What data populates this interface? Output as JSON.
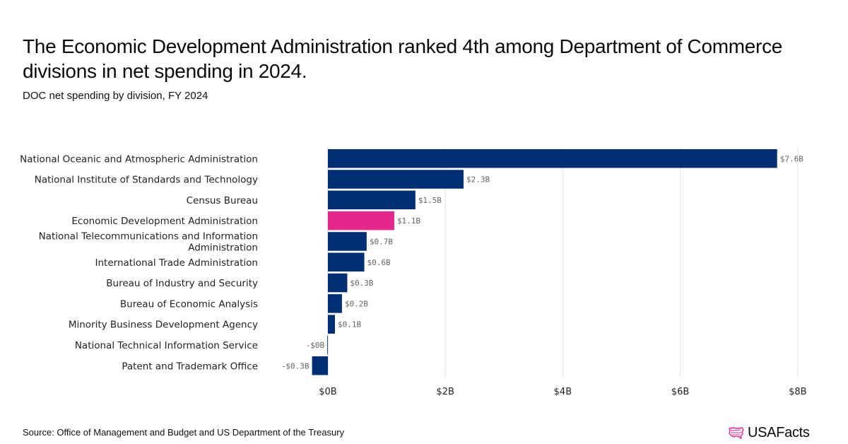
{
  "header": {
    "title": "The Economic Development Administration ranked 4th among Department of Commerce divisions in net spending in 2024.",
    "subtitle": "DOC net spending by division, FY 2024"
  },
  "footer": {
    "source": "Source: Office of Management and Budget and US Department of the Treasury",
    "logo_text": "USAFacts",
    "logo_icon": "usa-map-icon"
  },
  "colors": {
    "default_bar": "#002f76",
    "highlight_bar": "#e5268f",
    "gridline": "#e5e5e5",
    "logo_icon": "#e5268f"
  },
  "chart_data": {
    "type": "bar",
    "orientation": "horizontal",
    "title": "The Economic Development Administration ranked 4th among Department of Commerce divisions in net spending in 2024.",
    "subtitle": "DOC net spending by division, FY 2024",
    "xlabel": "",
    "ylabel": "",
    "unit": "billions USD",
    "xlim": [
      -0.3,
      8
    ],
    "grid": true,
    "legend": "none",
    "xticks": [
      0,
      2,
      4,
      6,
      8
    ],
    "xtick_labels": [
      "$0B",
      "$2B",
      "$4B",
      "$6B",
      "$8B"
    ],
    "categories": [
      "National Oceanic and Atmospheric Administration",
      "National Institute of Standards and Technology",
      "Census Bureau",
      "Economic Development Administration",
      "National Telecommunications and Information Administration",
      "International Trade Administration",
      "Bureau of Industry and Security",
      "Bureau of Economic Analysis",
      "Minority Business Development Agency",
      "National Technical Information Service",
      "Patent and Trademark Office"
    ],
    "category_lines": [
      [
        "National Oceanic and Atmospheric Administration"
      ],
      [
        "National Institute of Standards and Technology"
      ],
      [
        "Census Bureau"
      ],
      [
        "Economic Development Administration"
      ],
      [
        "National Telecommunications and Information",
        "Administration"
      ],
      [
        "International Trade Administration"
      ],
      [
        "Bureau of Industry and Security"
      ],
      [
        "Bureau of Economic Analysis"
      ],
      [
        "Minority Business Development Agency"
      ],
      [
        "National Technical Information Service"
      ],
      [
        "Patent and Trademark Office"
      ]
    ],
    "values": [
      7.65,
      2.31,
      1.49,
      1.13,
      0.66,
      0.62,
      0.33,
      0.24,
      0.12,
      -0.01,
      -0.27
    ],
    "data_labels": [
      "$7.6B",
      "$2.3B",
      "$1.5B",
      "$1.1B",
      "$0.7B",
      "$0.6B",
      "$0.3B",
      "$0.2B",
      "$0.1B",
      "-$0B",
      "-$0.3B"
    ],
    "highlight": "Economic Development Administration"
  }
}
